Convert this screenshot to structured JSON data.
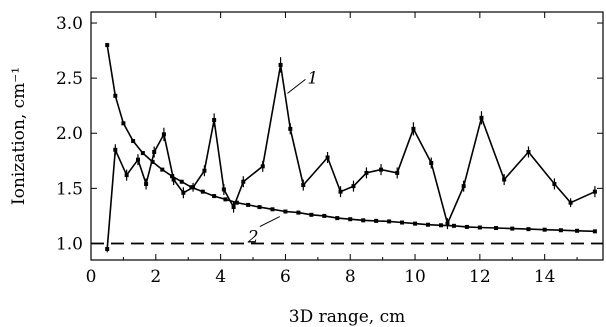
{
  "chart_data": {
    "type": "line",
    "xlabel": "3D range, cm",
    "ylabel": "Ionization, cm⁻¹",
    "xlim": [
      0,
      15.8
    ],
    "ylim": [
      0.85,
      3.1
    ],
    "x_ticks": [
      0,
      2,
      4,
      6,
      8,
      10,
      12,
      14
    ],
    "x_tick_labels": [
      "0",
      "2",
      "4",
      "6",
      "8",
      "10",
      "12",
      "14"
    ],
    "y_ticks": [
      1.0,
      1.5,
      2.0,
      2.5,
      3.0
    ],
    "y_tick_labels": [
      "1.0",
      "1.5",
      "2.0",
      "2.5",
      "3.0"
    ],
    "grid": false,
    "reference_line": {
      "y": 1.0,
      "style": "dashed"
    },
    "series": [
      {
        "name": "1",
        "points": [
          {
            "x": 0.5,
            "y": 0.95,
            "err": 0.03
          },
          {
            "x": 0.75,
            "y": 1.85,
            "err": 0.05
          },
          {
            "x": 1.1,
            "y": 1.62,
            "err": 0.05
          },
          {
            "x": 1.45,
            "y": 1.76,
            "err": 0.05
          },
          {
            "x": 1.7,
            "y": 1.54,
            "err": 0.05
          },
          {
            "x": 1.95,
            "y": 1.83,
            "err": 0.05
          },
          {
            "x": 2.25,
            "y": 1.99,
            "err": 0.06
          },
          {
            "x": 2.55,
            "y": 1.58,
            "err": 0.05
          },
          {
            "x": 2.85,
            "y": 1.46,
            "err": 0.05
          },
          {
            "x": 3.15,
            "y": 1.51,
            "err": 0.04
          },
          {
            "x": 3.5,
            "y": 1.66,
            "err": 0.05
          },
          {
            "x": 3.8,
            "y": 2.12,
            "err": 0.06
          },
          {
            "x": 4.1,
            "y": 1.49,
            "err": 0.05
          },
          {
            "x": 4.4,
            "y": 1.33,
            "err": 0.05
          },
          {
            "x": 4.7,
            "y": 1.56,
            "err": 0.05
          },
          {
            "x": 5.3,
            "y": 1.7,
            "err": 0.05
          },
          {
            "x": 5.85,
            "y": 2.62,
            "err": 0.07
          },
          {
            "x": 6.15,
            "y": 2.04,
            "err": 0.05
          },
          {
            "x": 6.55,
            "y": 1.53,
            "err": 0.05
          },
          {
            "x": 7.3,
            "y": 1.78,
            "err": 0.05
          },
          {
            "x": 7.7,
            "y": 1.47,
            "err": 0.05
          },
          {
            "x": 8.1,
            "y": 1.52,
            "err": 0.05
          },
          {
            "x": 8.5,
            "y": 1.64,
            "err": 0.05
          },
          {
            "x": 8.95,
            "y": 1.67,
            "err": 0.05
          },
          {
            "x": 9.45,
            "y": 1.64,
            "err": 0.05
          },
          {
            "x": 9.95,
            "y": 2.04,
            "err": 0.06
          },
          {
            "x": 10.5,
            "y": 1.73,
            "err": 0.05
          },
          {
            "x": 11.0,
            "y": 1.18,
            "err": 0.05
          },
          {
            "x": 11.5,
            "y": 1.52,
            "err": 0.05
          },
          {
            "x": 12.05,
            "y": 2.14,
            "err": 0.06
          },
          {
            "x": 12.75,
            "y": 1.58,
            "err": 0.05
          },
          {
            "x": 13.5,
            "y": 1.83,
            "err": 0.05
          },
          {
            "x": 14.3,
            "y": 1.54,
            "err": 0.05
          },
          {
            "x": 14.8,
            "y": 1.37,
            "err": 0.04
          },
          {
            "x": 15.55,
            "y": 1.47,
            "err": 0.05
          }
        ]
      },
      {
        "name": "2",
        "points": [
          {
            "x": 0.5,
            "y": 2.8
          },
          {
            "x": 0.75,
            "y": 2.34
          },
          {
            "x": 1.0,
            "y": 2.09
          },
          {
            "x": 1.3,
            "y": 1.93
          },
          {
            "x": 1.6,
            "y": 1.82
          },
          {
            "x": 1.9,
            "y": 1.74
          },
          {
            "x": 2.2,
            "y": 1.67
          },
          {
            "x": 2.5,
            "y": 1.61
          },
          {
            "x": 2.8,
            "y": 1.56
          },
          {
            "x": 3.1,
            "y": 1.51
          },
          {
            "x": 3.45,
            "y": 1.47
          },
          {
            "x": 3.8,
            "y": 1.43
          },
          {
            "x": 4.15,
            "y": 1.4
          },
          {
            "x": 4.5,
            "y": 1.37
          },
          {
            "x": 4.85,
            "y": 1.35
          },
          {
            "x": 5.2,
            "y": 1.33
          },
          {
            "x": 5.6,
            "y": 1.31
          },
          {
            "x": 6.0,
            "y": 1.29
          },
          {
            "x": 6.4,
            "y": 1.28
          },
          {
            "x": 6.8,
            "y": 1.26
          },
          {
            "x": 7.2,
            "y": 1.25
          },
          {
            "x": 7.6,
            "y": 1.23
          },
          {
            "x": 8.0,
            "y": 1.22
          },
          {
            "x": 8.4,
            "y": 1.21
          },
          {
            "x": 8.8,
            "y": 1.205
          },
          {
            "x": 9.2,
            "y": 1.2
          },
          {
            "x": 9.6,
            "y": 1.19
          },
          {
            "x": 10.0,
            "y": 1.18
          },
          {
            "x": 10.4,
            "y": 1.17
          },
          {
            "x": 10.8,
            "y": 1.165
          },
          {
            "x": 11.2,
            "y": 1.16
          },
          {
            "x": 11.6,
            "y": 1.15
          },
          {
            "x": 12.0,
            "y": 1.145
          },
          {
            "x": 12.5,
            "y": 1.14
          },
          {
            "x": 13.0,
            "y": 1.135
          },
          {
            "x": 13.5,
            "y": 1.13
          },
          {
            "x": 14.0,
            "y": 1.125
          },
          {
            "x": 14.5,
            "y": 1.12
          },
          {
            "x": 15.0,
            "y": 1.115
          },
          {
            "x": 15.55,
            "y": 1.11
          }
        ]
      }
    ],
    "annotations": [
      {
        "text": "1",
        "series": "1",
        "anchor_x": 6.0,
        "anchor_y": 2.38
      },
      {
        "text": "2",
        "series": "2",
        "anchor_x": 4.9,
        "anchor_y": 1.28
      }
    ]
  }
}
